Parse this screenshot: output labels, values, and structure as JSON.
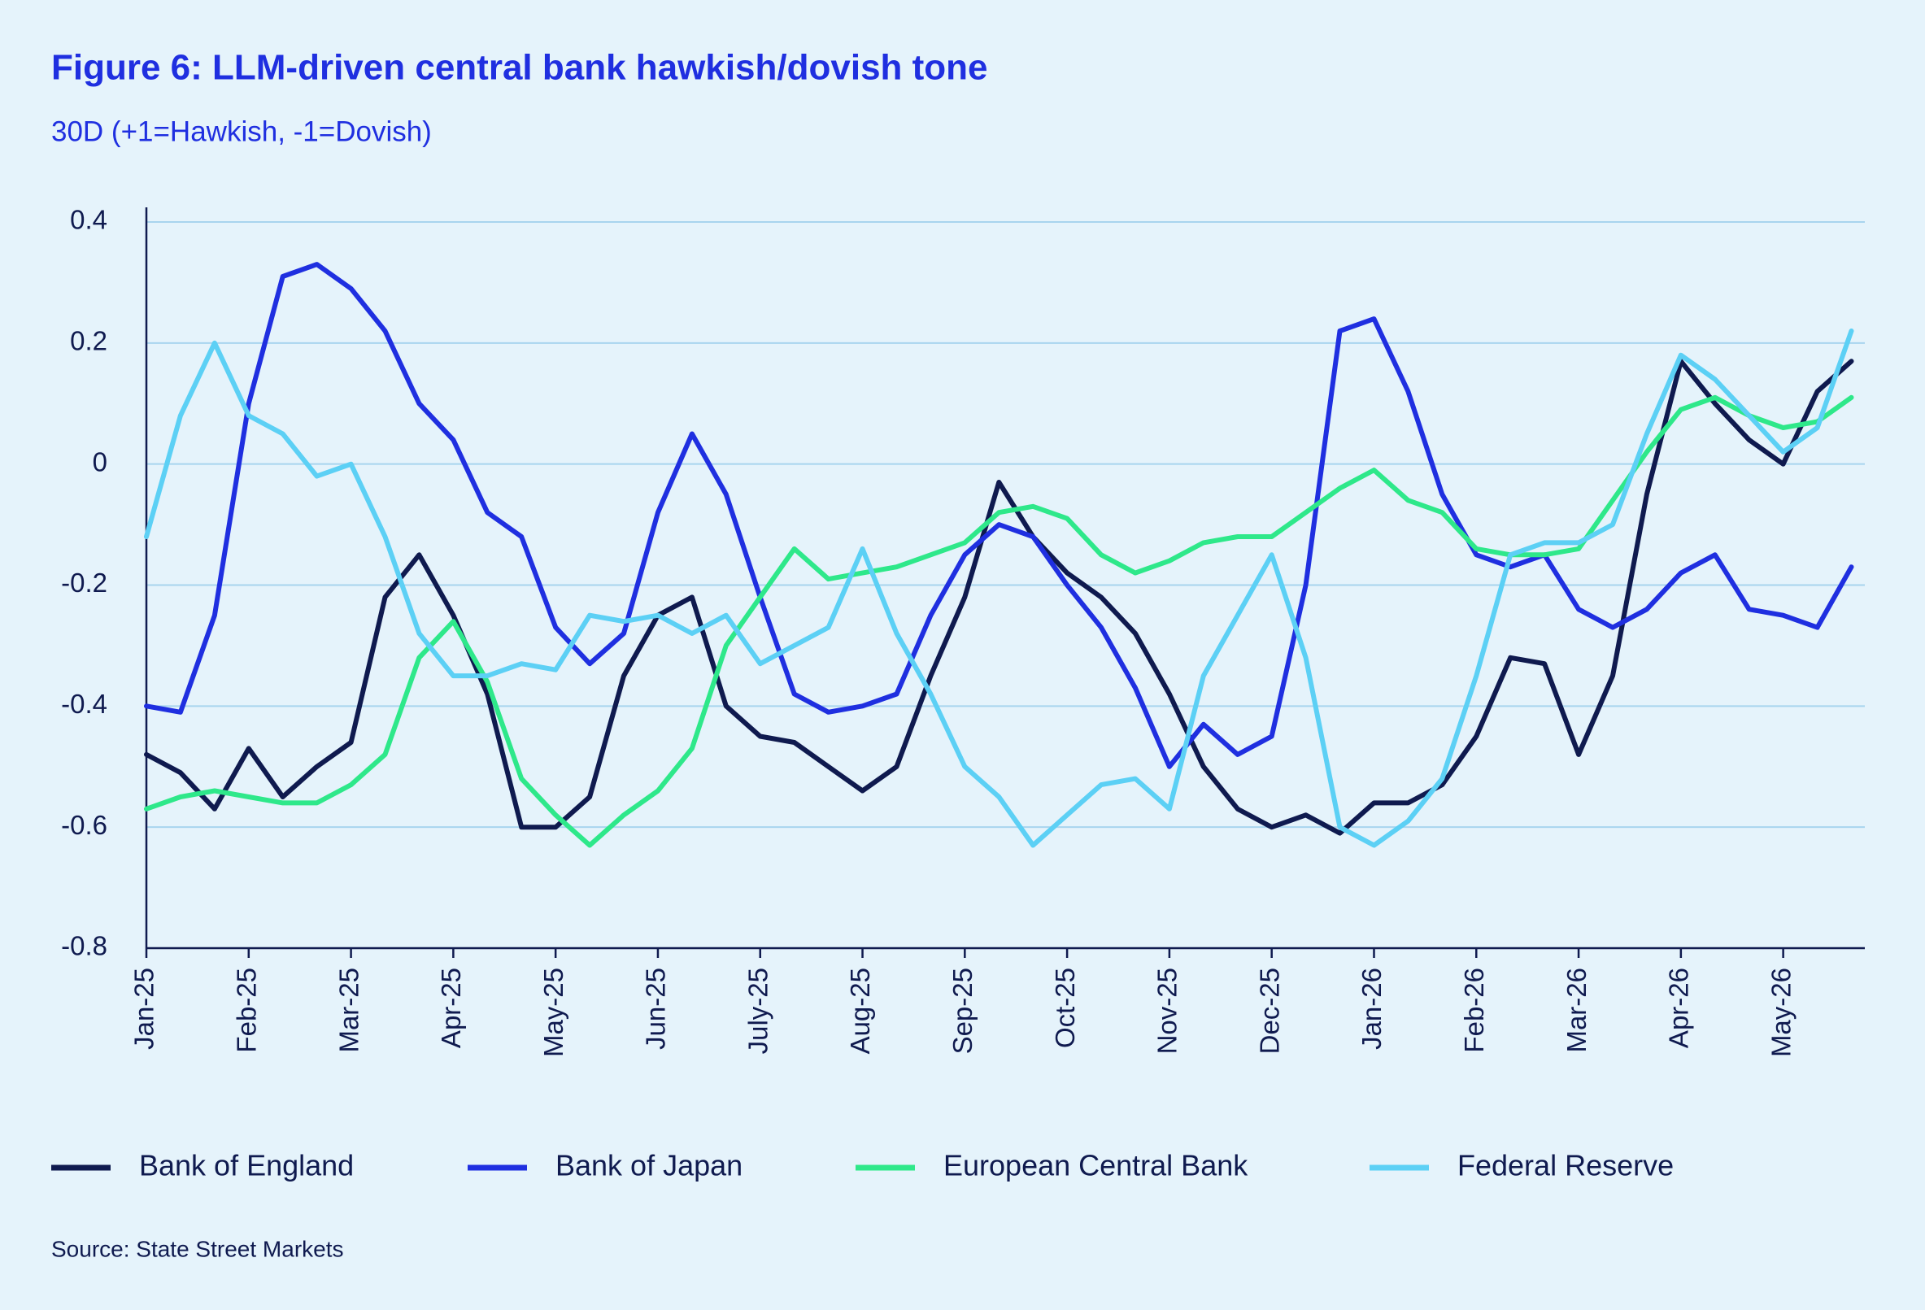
{
  "chart_data": {
    "type": "line",
    "title": "Figure 6: LLM-driven central bank hawkish/dovish tone",
    "subtitle": "30D (+1=Hawkish, -1=Dovish)",
    "source": "Source: State Street Markets",
    "categories": [
      "Jan-25",
      null,
      null,
      "Feb-25",
      null,
      null,
      "Mar-25",
      null,
      null,
      "Apr-25",
      null,
      null,
      "May-25",
      null,
      null,
      "Jun-25",
      null,
      null,
      "July-25",
      null,
      null,
      "Aug-25",
      null,
      null,
      "Sep-25",
      null,
      null,
      "Oct-25",
      null,
      null,
      "Nov-25",
      null,
      null,
      "Dec-25",
      null,
      null,
      "Jan-26",
      null,
      null,
      "Feb-26",
      null,
      null,
      "Mar-26",
      null,
      null,
      "Apr-26",
      null,
      null,
      "May-26",
      null,
      null
    ],
    "series": [
      {
        "name": "Bank of England",
        "color": "#0f1a4f",
        "values": [
          -0.48,
          -0.51,
          -0.57,
          -0.47,
          -0.55,
          -0.5,
          -0.46,
          -0.22,
          -0.15,
          -0.25,
          -0.38,
          -0.6,
          -0.6,
          -0.55,
          -0.35,
          -0.25,
          -0.22,
          -0.4,
          -0.45,
          -0.46,
          -0.5,
          -0.54,
          -0.5,
          -0.35,
          -0.22,
          -0.03,
          -0.12,
          -0.18,
          -0.22,
          -0.28,
          -0.38,
          -0.5,
          -0.57,
          -0.6,
          -0.58,
          -0.61,
          -0.56,
          -0.56,
          -0.53,
          -0.45,
          -0.32,
          -0.33,
          -0.48,
          -0.35,
          -0.05,
          0.17,
          0.1,
          0.04,
          0.0,
          0.12,
          0.17
        ]
      },
      {
        "name": "Bank of Japan",
        "color": "#1f2fe0",
        "values": [
          -0.4,
          -0.41,
          -0.25,
          0.1,
          0.31,
          0.33,
          0.29,
          0.22,
          0.1,
          0.04,
          -0.08,
          -0.12,
          -0.27,
          -0.33,
          -0.28,
          -0.08,
          0.05,
          -0.05,
          -0.22,
          -0.38,
          -0.41,
          -0.4,
          -0.38,
          -0.25,
          -0.15,
          -0.1,
          -0.12,
          -0.2,
          -0.27,
          -0.37,
          -0.5,
          -0.43,
          -0.48,
          -0.45,
          -0.2,
          0.22,
          0.24,
          0.12,
          -0.05,
          -0.15,
          -0.17,
          -0.15,
          -0.24,
          -0.27,
          -0.24,
          -0.18,
          -0.15,
          -0.24,
          -0.25,
          -0.27,
          -0.17
        ]
      },
      {
        "name": "European Central Bank",
        "color": "#2ee88a",
        "values": [
          -0.57,
          -0.55,
          -0.54,
          -0.55,
          -0.56,
          -0.56,
          -0.53,
          -0.48,
          -0.32,
          -0.26,
          -0.36,
          -0.52,
          -0.58,
          -0.63,
          -0.58,
          -0.54,
          -0.47,
          -0.3,
          -0.22,
          -0.14,
          -0.19,
          -0.18,
          -0.17,
          -0.15,
          -0.13,
          -0.08,
          -0.07,
          -0.09,
          -0.15,
          -0.18,
          -0.16,
          -0.13,
          -0.12,
          -0.12,
          -0.08,
          -0.04,
          -0.01,
          -0.06,
          -0.08,
          -0.14,
          -0.15,
          -0.15,
          -0.14,
          -0.06,
          0.02,
          0.09,
          0.11,
          0.08,
          0.06,
          0.07,
          0.11
        ]
      },
      {
        "name": "Federal Reserve",
        "color": "#5cd0f5",
        "values": [
          -0.12,
          0.08,
          0.2,
          0.08,
          0.05,
          -0.02,
          0.0,
          -0.12,
          -0.28,
          -0.35,
          -0.35,
          -0.33,
          -0.34,
          -0.25,
          -0.26,
          -0.25,
          -0.28,
          -0.25,
          -0.33,
          -0.3,
          -0.27,
          -0.14,
          -0.28,
          -0.38,
          -0.5,
          -0.55,
          -0.63,
          -0.58,
          -0.53,
          -0.52,
          -0.57,
          -0.35,
          -0.25,
          -0.15,
          -0.32,
          -0.6,
          -0.63,
          -0.59,
          -0.52,
          -0.35,
          -0.15,
          -0.13,
          -0.13,
          -0.1,
          0.05,
          0.18,
          0.14,
          0.08,
          0.02,
          0.06,
          0.22
        ]
      }
    ],
    "ylim": [
      -0.8,
      0.4
    ],
    "yticks": [
      -0.8,
      -0.6,
      -0.4,
      -0.2,
      0,
      0.2,
      0.4
    ],
    "grid": true,
    "legend": "bottom"
  }
}
